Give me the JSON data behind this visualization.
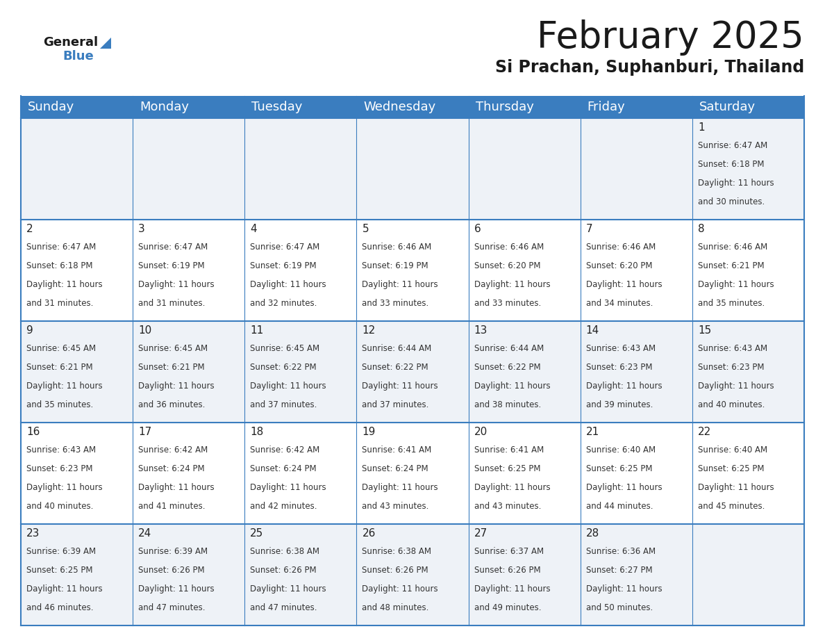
{
  "title": "February 2025",
  "subtitle": "Si Prachan, Suphanburi, Thailand",
  "header_bg_color": "#3a7dbf",
  "header_text_color": "#ffffff",
  "cell_bg_even": "#eef2f7",
  "cell_bg_odd": "#ffffff",
  "grid_line_color": "#3a7dbf",
  "text_color": "#222222",
  "info_color": "#333333",
  "day_headers": [
    "Sunday",
    "Monday",
    "Tuesday",
    "Wednesday",
    "Thursday",
    "Friday",
    "Saturday"
  ],
  "title_fontsize": 38,
  "subtitle_fontsize": 17,
  "header_fontsize": 13,
  "day_num_fontsize": 11,
  "info_fontsize": 8.5,
  "logo_general_fontsize": 13,
  "logo_blue_fontsize": 13,
  "calendar": [
    [
      {
        "day": null,
        "sunrise": null,
        "sunset": null,
        "daylight": null
      },
      {
        "day": null,
        "sunrise": null,
        "sunset": null,
        "daylight": null
      },
      {
        "day": null,
        "sunrise": null,
        "sunset": null,
        "daylight": null
      },
      {
        "day": null,
        "sunrise": null,
        "sunset": null,
        "daylight": null
      },
      {
        "day": null,
        "sunrise": null,
        "sunset": null,
        "daylight": null
      },
      {
        "day": null,
        "sunrise": null,
        "sunset": null,
        "daylight": null
      },
      {
        "day": 1,
        "sunrise": "6:47 AM",
        "sunset": "6:18 PM",
        "daylight": "11 hours\nand 30 minutes."
      }
    ],
    [
      {
        "day": 2,
        "sunrise": "6:47 AM",
        "sunset": "6:18 PM",
        "daylight": "11 hours\nand 31 minutes."
      },
      {
        "day": 3,
        "sunrise": "6:47 AM",
        "sunset": "6:19 PM",
        "daylight": "11 hours\nand 31 minutes."
      },
      {
        "day": 4,
        "sunrise": "6:47 AM",
        "sunset": "6:19 PM",
        "daylight": "11 hours\nand 32 minutes."
      },
      {
        "day": 5,
        "sunrise": "6:46 AM",
        "sunset": "6:19 PM",
        "daylight": "11 hours\nand 33 minutes."
      },
      {
        "day": 6,
        "sunrise": "6:46 AM",
        "sunset": "6:20 PM",
        "daylight": "11 hours\nand 33 minutes."
      },
      {
        "day": 7,
        "sunrise": "6:46 AM",
        "sunset": "6:20 PM",
        "daylight": "11 hours\nand 34 minutes."
      },
      {
        "day": 8,
        "sunrise": "6:46 AM",
        "sunset": "6:21 PM",
        "daylight": "11 hours\nand 35 minutes."
      }
    ],
    [
      {
        "day": 9,
        "sunrise": "6:45 AM",
        "sunset": "6:21 PM",
        "daylight": "11 hours\nand 35 minutes."
      },
      {
        "day": 10,
        "sunrise": "6:45 AM",
        "sunset": "6:21 PM",
        "daylight": "11 hours\nand 36 minutes."
      },
      {
        "day": 11,
        "sunrise": "6:45 AM",
        "sunset": "6:22 PM",
        "daylight": "11 hours\nand 37 minutes."
      },
      {
        "day": 12,
        "sunrise": "6:44 AM",
        "sunset": "6:22 PM",
        "daylight": "11 hours\nand 37 minutes."
      },
      {
        "day": 13,
        "sunrise": "6:44 AM",
        "sunset": "6:22 PM",
        "daylight": "11 hours\nand 38 minutes."
      },
      {
        "day": 14,
        "sunrise": "6:43 AM",
        "sunset": "6:23 PM",
        "daylight": "11 hours\nand 39 minutes."
      },
      {
        "day": 15,
        "sunrise": "6:43 AM",
        "sunset": "6:23 PM",
        "daylight": "11 hours\nand 40 minutes."
      }
    ],
    [
      {
        "day": 16,
        "sunrise": "6:43 AM",
        "sunset": "6:23 PM",
        "daylight": "11 hours\nand 40 minutes."
      },
      {
        "day": 17,
        "sunrise": "6:42 AM",
        "sunset": "6:24 PM",
        "daylight": "11 hours\nand 41 minutes."
      },
      {
        "day": 18,
        "sunrise": "6:42 AM",
        "sunset": "6:24 PM",
        "daylight": "11 hours\nand 42 minutes."
      },
      {
        "day": 19,
        "sunrise": "6:41 AM",
        "sunset": "6:24 PM",
        "daylight": "11 hours\nand 43 minutes."
      },
      {
        "day": 20,
        "sunrise": "6:41 AM",
        "sunset": "6:25 PM",
        "daylight": "11 hours\nand 43 minutes."
      },
      {
        "day": 21,
        "sunrise": "6:40 AM",
        "sunset": "6:25 PM",
        "daylight": "11 hours\nand 44 minutes."
      },
      {
        "day": 22,
        "sunrise": "6:40 AM",
        "sunset": "6:25 PM",
        "daylight": "11 hours\nand 45 minutes."
      }
    ],
    [
      {
        "day": 23,
        "sunrise": "6:39 AM",
        "sunset": "6:25 PM",
        "daylight": "11 hours\nand 46 minutes."
      },
      {
        "day": 24,
        "sunrise": "6:39 AM",
        "sunset": "6:26 PM",
        "daylight": "11 hours\nand 47 minutes."
      },
      {
        "day": 25,
        "sunrise": "6:38 AM",
        "sunset": "6:26 PM",
        "daylight": "11 hours\nand 47 minutes."
      },
      {
        "day": 26,
        "sunrise": "6:38 AM",
        "sunset": "6:26 PM",
        "daylight": "11 hours\nand 48 minutes."
      },
      {
        "day": 27,
        "sunrise": "6:37 AM",
        "sunset": "6:26 PM",
        "daylight": "11 hours\nand 49 minutes."
      },
      {
        "day": 28,
        "sunrise": "6:36 AM",
        "sunset": "6:27 PM",
        "daylight": "11 hours\nand 50 minutes."
      },
      {
        "day": null,
        "sunrise": null,
        "sunset": null,
        "daylight": null
      }
    ]
  ]
}
